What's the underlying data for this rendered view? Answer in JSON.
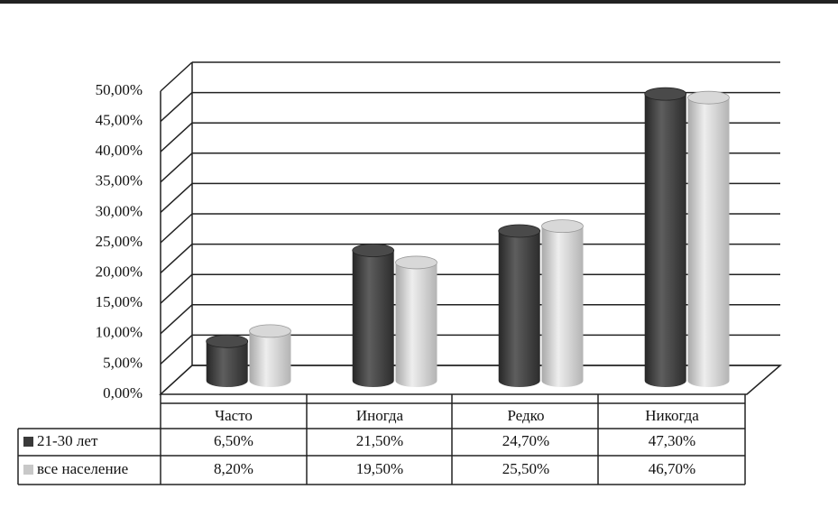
{
  "chart_data": {
    "type": "bar3d",
    "categories": [
      "Часто",
      "Иногда",
      "Редко",
      "Никогда"
    ],
    "series": [
      {
        "name": "21-30 лет",
        "color": "#3a3a3a",
        "values": [
          6.5,
          21.5,
          24.7,
          47.3
        ],
        "value_labels": [
          "6,50%",
          "21,50%",
          "24,70%",
          "47,30%"
        ]
      },
      {
        "name": "все население",
        "color": "#c8c8c8",
        "values": [
          8.2,
          19.5,
          25.5,
          46.7
        ],
        "value_labels": [
          "8,20%",
          "19,50%",
          "25,50%",
          "46,70%"
        ]
      }
    ],
    "ylim": [
      0,
      50
    ],
    "yticks": [
      {
        "value": 0,
        "label": "0,00%"
      },
      {
        "value": 5,
        "label": "5,00%"
      },
      {
        "value": 10,
        "label": "10,00%"
      },
      {
        "value": 15,
        "label": "15,00%"
      },
      {
        "value": 20,
        "label": "20,00%"
      },
      {
        "value": 25,
        "label": "25,00%"
      },
      {
        "value": 30,
        "label": "30,00%"
      },
      {
        "value": 35,
        "label": "35,00%"
      },
      {
        "value": 40,
        "label": "40,00%"
      },
      {
        "value": 45,
        "label": "45,00%"
      },
      {
        "value": 50,
        "label": "50,00%"
      }
    ],
    "grid": true
  }
}
